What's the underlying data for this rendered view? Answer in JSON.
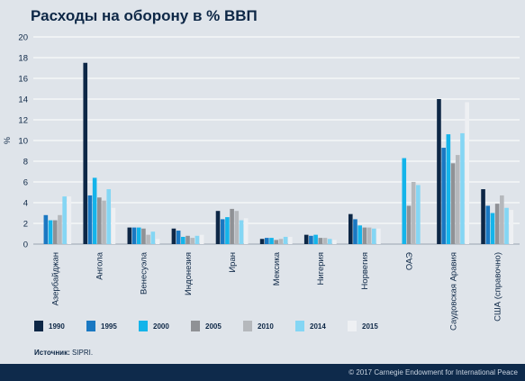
{
  "title": "Расходы на оборону в % ВВП",
  "source_label": "Источник:",
  "source_value": "SIPRI.",
  "footer": "© 2017 Carnegie Endowment for International Peace",
  "chart_data": {
    "type": "bar",
    "ylabel": "%",
    "ylim": [
      0,
      20
    ],
    "yticks": [
      0,
      2,
      4,
      6,
      8,
      10,
      12,
      14,
      16,
      18,
      20
    ],
    "grid": true,
    "legend_position": "bottom",
    "categories": [
      "Азербайджан",
      "Ангола",
      "Венесуэла",
      "Индонезия",
      "Иран",
      "Мексика",
      "Нигерия",
      "Норвегия",
      "ОАЭ",
      "Саудовская Аравия",
      "США (справочно)"
    ],
    "series": [
      {
        "name": "1990",
        "color": "#0d2746",
        "values": [
          null,
          17.5,
          1.6,
          1.5,
          3.2,
          0.5,
          0.9,
          2.9,
          null,
          14.0,
          5.3
        ]
      },
      {
        "name": "1995",
        "color": "#1a78c2",
        "values": [
          2.8,
          4.7,
          1.6,
          1.3,
          2.4,
          0.6,
          0.8,
          2.4,
          null,
          9.3,
          3.7
        ]
      },
      {
        "name": "2000",
        "color": "#14b4ea",
        "values": [
          2.3,
          6.4,
          1.6,
          0.7,
          2.6,
          0.6,
          0.9,
          1.8,
          8.3,
          10.6,
          3.0
        ]
      },
      {
        "name": "2005",
        "color": "#8f9195",
        "values": [
          2.3,
          4.5,
          1.5,
          0.8,
          3.4,
          0.4,
          0.6,
          1.6,
          3.7,
          7.8,
          3.9
        ]
      },
      {
        "name": "2010",
        "color": "#b5b8bc",
        "values": [
          2.8,
          4.2,
          0.9,
          0.6,
          3.2,
          0.5,
          0.6,
          1.6,
          6.0,
          8.6,
          4.7
        ]
      },
      {
        "name": "2014",
        "color": "#84d6f4",
        "values": [
          4.6,
          5.3,
          1.2,
          0.8,
          2.3,
          0.7,
          0.5,
          1.5,
          5.7,
          10.7,
          3.5
        ]
      },
      {
        "name": "2015",
        "color": "#eef0f3",
        "values": [
          4.6,
          3.5,
          0.5,
          0.9,
          2.5,
          0.7,
          0.4,
          1.5,
          null,
          13.7,
          3.3
        ]
      }
    ]
  }
}
